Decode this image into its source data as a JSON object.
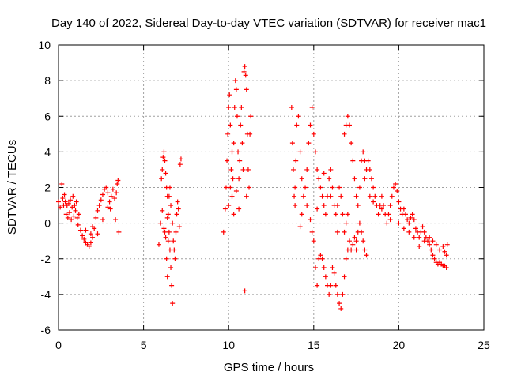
{
  "chart_data": {
    "type": "scatter",
    "title": "Day 140 of 2022, Sidereal Day-to-day VTEC variation (SDTVAR) for receiver mac1",
    "xlabel": "GPS time / hours",
    "ylabel": "SDTVAR / TECUs",
    "xlim": [
      0,
      25
    ],
    "ylim": [
      -6,
      10
    ],
    "xticks": [
      0,
      5,
      10,
      15,
      20,
      25
    ],
    "yticks": [
      -6,
      -4,
      -2,
      0,
      2,
      4,
      6,
      8,
      10
    ],
    "grid": true,
    "marker": "+",
    "color": "#ff0000",
    "series": [
      {
        "name": "SDTVAR",
        "points": [
          [
            0.0,
            1.2
          ],
          [
            0.1,
            0.9
          ],
          [
            0.2,
            2.2
          ],
          [
            0.25,
            1.4
          ],
          [
            0.3,
            1.0
          ],
          [
            0.35,
            1.6
          ],
          [
            0.4,
            1.2
          ],
          [
            0.45,
            0.5
          ],
          [
            0.5,
            1.0
          ],
          [
            0.55,
            0.3
          ],
          [
            0.6,
            1.1
          ],
          [
            0.65,
            0.6
          ],
          [
            0.7,
            1.3
          ],
          [
            0.75,
            0.2
          ],
          [
            0.8,
            0.9
          ],
          [
            0.85,
            1.5
          ],
          [
            0.9,
            0.4
          ],
          [
            0.95,
            1.0
          ],
          [
            1.0,
            0.7
          ],
          [
            1.05,
            1.2
          ],
          [
            1.1,
            0.3
          ],
          [
            1.15,
            -0.1
          ],
          [
            1.2,
            0.5
          ],
          [
            1.3,
            -0.4
          ],
          [
            1.4,
            -0.7
          ],
          [
            1.5,
            -0.9
          ],
          [
            1.6,
            -1.1
          ],
          [
            1.7,
            -1.2
          ],
          [
            1.8,
            -1.3
          ],
          [
            1.9,
            -1.1
          ],
          [
            2.0,
            -0.8
          ],
          [
            2.1,
            -0.3
          ],
          [
            2.2,
            0.3
          ],
          [
            2.3,
            0.7
          ],
          [
            2.4,
            1.0
          ],
          [
            2.5,
            1.3
          ],
          [
            2.6,
            1.6
          ],
          [
            2.7,
            1.9
          ],
          [
            2.8,
            2.0
          ],
          [
            2.9,
            1.7
          ],
          [
            3.0,
            1.2
          ],
          [
            3.05,
            0.8
          ],
          [
            3.1,
            1.5
          ],
          [
            3.2,
            1.9
          ],
          [
            3.3,
            1.4
          ],
          [
            3.35,
            0.2
          ],
          [
            3.4,
            1.7
          ],
          [
            3.45,
            2.2
          ],
          [
            3.5,
            2.4
          ],
          [
            3.55,
            -0.5
          ],
          [
            2.0,
            -0.2
          ],
          [
            2.3,
            -0.6
          ],
          [
            2.6,
            0.2
          ],
          [
            2.9,
            0.9
          ],
          [
            1.6,
            -0.4
          ],
          [
            1.9,
            -0.6
          ],
          [
            5.9,
            -1.2
          ],
          [
            6.0,
            0.0
          ],
          [
            6.05,
            2.5
          ],
          [
            6.1,
            3.0
          ],
          [
            6.15,
            3.7
          ],
          [
            6.2,
            4.0
          ],
          [
            6.25,
            3.5
          ],
          [
            6.3,
            2.8
          ],
          [
            6.35,
            2.0
          ],
          [
            6.4,
            1.5
          ],
          [
            6.45,
            0.5
          ],
          [
            6.5,
            -0.5
          ],
          [
            6.55,
            -1.5
          ],
          [
            6.6,
            -2.5
          ],
          [
            6.65,
            -3.5
          ],
          [
            6.7,
            -4.5
          ],
          [
            6.5,
            1.5
          ],
          [
            6.6,
            1.0
          ],
          [
            6.7,
            0.0
          ],
          [
            6.75,
            -1.0
          ],
          [
            6.8,
            -1.5
          ],
          [
            6.85,
            -2.0
          ],
          [
            6.9,
            -0.5
          ],
          [
            6.95,
            0.5
          ],
          [
            7.0,
            1.2
          ],
          [
            7.05,
            0.8
          ],
          [
            7.1,
            -0.2
          ],
          [
            7.15,
            3.3
          ],
          [
            7.2,
            3.6
          ],
          [
            6.3,
            -0.8
          ],
          [
            6.2,
            -0.3
          ],
          [
            6.4,
            0.3
          ],
          [
            6.1,
            0.7
          ],
          [
            6.25,
            -0.5
          ],
          [
            6.45,
            -1.0
          ],
          [
            6.55,
            2.0
          ],
          [
            6.35,
            -2.0
          ],
          [
            6.4,
            -3.0
          ],
          [
            9.7,
            -0.5
          ],
          [
            9.8,
            0.8
          ],
          [
            9.85,
            2.0
          ],
          [
            9.9,
            3.5
          ],
          [
            9.95,
            5.0
          ],
          [
            10.0,
            6.5
          ],
          [
            10.05,
            7.2
          ],
          [
            10.1,
            5.5
          ],
          [
            10.15,
            3.0
          ],
          [
            10.2,
            1.5
          ],
          [
            10.25,
            2.5
          ],
          [
            10.3,
            4.5
          ],
          [
            10.35,
            6.5
          ],
          [
            10.4,
            8.0
          ],
          [
            10.45,
            7.5
          ],
          [
            10.5,
            6.0
          ],
          [
            10.55,
            4.0
          ],
          [
            10.6,
            2.5
          ],
          [
            10.65,
            3.5
          ],
          [
            10.7,
            5.5
          ],
          [
            10.75,
            6.5
          ],
          [
            10.8,
            4.5
          ],
          [
            10.85,
            3.0
          ],
          [
            10.9,
            8.5
          ],
          [
            10.95,
            8.8
          ],
          [
            11.0,
            8.3
          ],
          [
            11.05,
            7.5
          ],
          [
            11.1,
            5.0
          ],
          [
            11.15,
            3.0
          ],
          [
            11.2,
            2.0
          ],
          [
            11.25,
            5.0
          ],
          [
            11.3,
            6.0
          ],
          [
            10.0,
            1.0
          ],
          [
            10.1,
            2.0
          ],
          [
            10.2,
            4.0
          ],
          [
            10.3,
            0.5
          ],
          [
            10.45,
            1.8
          ],
          [
            10.6,
            0.8
          ],
          [
            10.95,
            -3.8
          ],
          [
            11.05,
            1.5
          ],
          [
            13.7,
            6.5
          ],
          [
            13.75,
            4.5
          ],
          [
            13.8,
            3.0
          ],
          [
            13.85,
            1.5
          ],
          [
            13.9,
            2.0
          ],
          [
            13.95,
            3.5
          ],
          [
            14.0,
            5.5
          ],
          [
            14.1,
            6.0
          ],
          [
            14.2,
            4.0
          ],
          [
            14.3,
            2.5
          ],
          [
            14.4,
            1.5
          ],
          [
            14.5,
            2.0
          ],
          [
            14.6,
            3.0
          ],
          [
            14.7,
            4.5
          ],
          [
            14.8,
            5.5
          ],
          [
            14.9,
            6.5
          ],
          [
            15.0,
            5.0
          ],
          [
            15.1,
            4.0
          ],
          [
            15.2,
            3.0
          ],
          [
            15.3,
            2.5
          ],
          [
            15.4,
            2.0
          ],
          [
            15.5,
            1.5
          ],
          [
            15.6,
            1.0
          ],
          [
            15.7,
            0.5
          ],
          [
            15.8,
            1.5
          ],
          [
            15.9,
            2.5
          ],
          [
            16.0,
            3.0
          ],
          [
            16.1,
            2.0
          ],
          [
            16.2,
            1.0
          ],
          [
            16.3,
            0.5
          ],
          [
            16.4,
            1.0
          ],
          [
            16.5,
            2.0
          ],
          [
            16.6,
            1.5
          ],
          [
            16.7,
            0.5
          ],
          [
            16.8,
            -0.5
          ],
          [
            16.9,
            0.0
          ],
          [
            17.0,
            0.5
          ],
          [
            13.9,
            1.0
          ],
          [
            14.3,
            0.5
          ],
          [
            14.6,
            1.0
          ],
          [
            14.9,
            -0.5
          ],
          [
            15.0,
            -1.0
          ],
          [
            15.1,
            -2.5
          ],
          [
            15.2,
            -3.5
          ],
          [
            15.3,
            -2.0
          ],
          [
            15.4,
            -1.8
          ],
          [
            15.5,
            -2.0
          ],
          [
            15.6,
            -2.5
          ],
          [
            15.7,
            -3.0
          ],
          [
            15.8,
            -3.5
          ],
          [
            15.9,
            -4.0
          ],
          [
            16.0,
            -3.5
          ],
          [
            16.1,
            -2.5
          ],
          [
            16.2,
            -2.8
          ],
          [
            16.3,
            -3.5
          ],
          [
            16.4,
            -4.0
          ],
          [
            16.5,
            -4.5
          ],
          [
            16.6,
            -4.8
          ],
          [
            16.7,
            -4.0
          ],
          [
            16.8,
            -3.0
          ],
          [
            16.9,
            -2.0
          ],
          [
            17.0,
            -1.5
          ],
          [
            17.1,
            -1.0
          ],
          [
            17.2,
            -1.5
          ],
          [
            17.3,
            -1.2
          ],
          [
            17.4,
            -0.8
          ],
          [
            17.5,
            -1.0
          ],
          [
            17.6,
            -0.5
          ],
          [
            17.7,
            0.0
          ],
          [
            17.8,
            -0.5
          ],
          [
            17.9,
            -1.0
          ],
          [
            18.0,
            -1.5
          ],
          [
            18.1,
            -1.8
          ],
          [
            17.5,
            -1.5
          ],
          [
            14.2,
            -0.2
          ],
          [
            14.8,
            0.2
          ],
          [
            15.2,
            0.8
          ],
          [
            15.6,
            2.8
          ],
          [
            16.0,
            1.5
          ],
          [
            16.4,
            -0.5
          ],
          [
            16.8,
            5.0
          ],
          [
            16.9,
            5.5
          ],
          [
            17.0,
            6.0
          ],
          [
            17.1,
            5.5
          ],
          [
            17.2,
            4.5
          ],
          [
            17.3,
            3.5
          ],
          [
            17.4,
            2.5
          ],
          [
            17.5,
            1.5
          ],
          [
            17.6,
            1.0
          ],
          [
            17.7,
            2.0
          ],
          [
            17.8,
            3.5
          ],
          [
            17.9,
            4.0
          ],
          [
            18.0,
            3.5
          ],
          [
            18.1,
            3.0
          ],
          [
            18.2,
            3.5
          ],
          [
            18.3,
            3.0
          ],
          [
            18.4,
            2.5
          ],
          [
            18.5,
            2.0
          ],
          [
            18.6,
            1.5
          ],
          [
            18.7,
            1.0
          ],
          [
            18.8,
            0.5
          ],
          [
            18.9,
            1.0
          ],
          [
            19.0,
            1.5
          ],
          [
            19.1,
            1.0
          ],
          [
            19.2,
            0.5
          ],
          [
            19.3,
            0.0
          ],
          [
            19.4,
            0.5
          ],
          [
            19.5,
            1.0
          ],
          [
            19.6,
            1.5
          ],
          [
            19.7,
            2.0
          ],
          [
            19.8,
            2.2
          ],
          [
            19.9,
            1.8
          ],
          [
            20.0,
            1.2
          ],
          [
            20.1,
            0.8
          ],
          [
            20.2,
            0.5
          ],
          [
            20.3,
            0.8
          ],
          [
            20.4,
            0.5
          ],
          [
            20.5,
            0.2
          ],
          [
            20.6,
            0.0
          ],
          [
            20.7,
            0.3
          ],
          [
            20.8,
            0.5
          ],
          [
            20.9,
            0.2
          ],
          [
            21.0,
            -0.3
          ],
          [
            21.1,
            -0.5
          ],
          [
            21.2,
            -0.8
          ],
          [
            21.3,
            -0.5
          ],
          [
            21.4,
            -0.2
          ],
          [
            21.5,
            -0.5
          ],
          [
            21.6,
            -0.8
          ],
          [
            21.7,
            -1.0
          ],
          [
            21.8,
            -1.2
          ],
          [
            21.9,
            -1.5
          ],
          [
            22.0,
            -1.8
          ],
          [
            22.1,
            -2.0
          ],
          [
            22.2,
            -2.2
          ],
          [
            22.3,
            -2.3
          ],
          [
            22.4,
            -2.2
          ],
          [
            22.5,
            -2.3
          ],
          [
            22.6,
            -2.4
          ],
          [
            22.7,
            -2.4
          ],
          [
            22.8,
            -2.5
          ],
          [
            21.5,
            -1.0
          ],
          [
            21.8,
            -0.8
          ],
          [
            22.0,
            -1.0
          ],
          [
            22.2,
            -1.2
          ],
          [
            22.4,
            -1.5
          ],
          [
            22.6,
            -1.3
          ],
          [
            22.7,
            -1.6
          ],
          [
            22.8,
            -1.8
          ],
          [
            22.85,
            -1.2
          ],
          [
            20.0,
            0.0
          ],
          [
            20.3,
            -0.3
          ],
          [
            20.6,
            -0.5
          ],
          [
            20.9,
            -0.8
          ],
          [
            21.2,
            -1.3
          ],
          [
            19.5,
            0.2
          ],
          [
            19.0,
            0.8
          ],
          [
            18.5,
            1.2
          ],
          [
            18.0,
            2.5
          ],
          [
            18.3,
            1.5
          ]
        ]
      }
    ]
  }
}
